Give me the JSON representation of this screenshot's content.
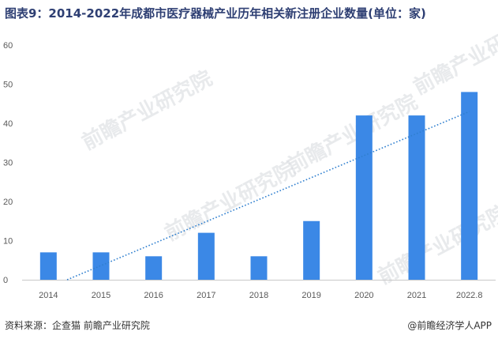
{
  "chart_data": {
    "type": "bar",
    "title": "图表9：2014-2022年成都市医疗器械产业历年相关新注册企业数量(单位：家)",
    "categories": [
      "2014",
      "2015",
      "2016",
      "2017",
      "2018",
      "2019",
      "2020",
      "2021",
      "2022.8"
    ],
    "values": [
      7,
      7,
      6,
      12,
      6,
      15,
      42,
      42,
      48
    ],
    "ylim": [
      0,
      60
    ],
    "yticks": [
      0,
      10,
      20,
      30,
      40,
      50,
      60
    ],
    "trendline": {
      "style": "dotted",
      "start": -2,
      "end": 43
    },
    "grid": false,
    "legend": "none",
    "colors": {
      "bar": "#3b88e6",
      "trend": "#2f7fcf",
      "axis": "#c8c8c8",
      "title": "#2e3f73"
    }
  },
  "footer": {
    "source": "资料来源：企查猫 前瞻产业研究院",
    "brand": "@前瞻经济学人APP"
  },
  "watermark_text": "前瞻产业研究院"
}
